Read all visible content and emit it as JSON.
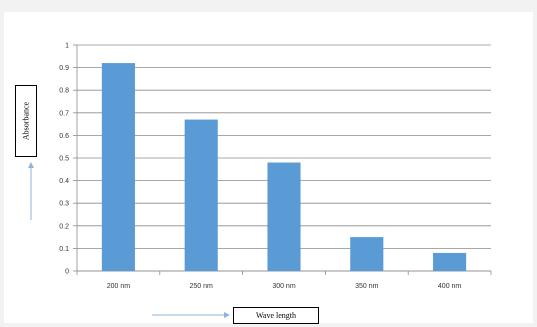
{
  "chart_data": {
    "type": "bar",
    "categories": [
      "200 nm",
      "250 nm",
      "300 nm",
      "350 nm",
      "400 nm"
    ],
    "values": [
      0.92,
      0.67,
      0.48,
      0.15,
      0.08
    ],
    "title": "",
    "xlabel": "Wave length",
    "ylabel": "Absorbance",
    "ylim": [
      0,
      1
    ],
    "yticks": [
      "0",
      "0.1",
      "0.2",
      "0.3",
      "0.4",
      "0.5",
      "0.6",
      "0.7",
      "0.8",
      "0.9",
      "1"
    ],
    "grid": true,
    "bar_color": "#5b9bd5",
    "arrow_color": "#8fb3d9"
  }
}
